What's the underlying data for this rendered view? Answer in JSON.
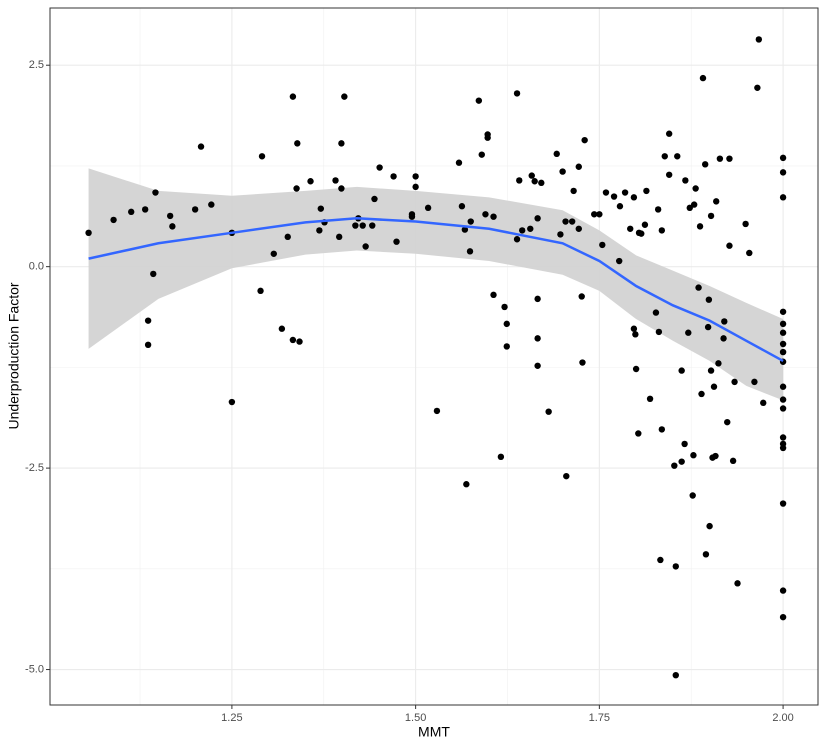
{
  "chart_data": {
    "type": "scatter",
    "x_label": "MMT",
    "y_label": "Underproduction Factor",
    "xlim": [
      1.0025,
      2.0475
    ],
    "ylim": [
      -5.44,
      3.21
    ],
    "xticks": [
      1.25,
      {
        "value": 1.5,
        "label": "1.50"
      },
      1.75,
      {
        "value": 2,
        "label": "2.00"
      }
    ],
    "yticks": [
      {
        "value": -5,
        "label": "-5.0"
      },
      -2.5,
      {
        "value": 0,
        "label": "0.0"
      },
      2.5
    ],
    "grid": true,
    "minor_grid": true,
    "color": "#000000",
    "x": [
      1.055,
      1.089,
      1.113,
      1.132,
      1.146,
      1.136,
      1.136,
      1.143,
      1.166,
      1.169,
      1.2,
      1.208,
      1.222,
      1.25,
      1.25,
      1.291,
      1.289,
      1.307,
      1.318,
      1.326,
      1.333,
      1.333,
      1.339,
      1.338,
      1.342,
      1.357,
      1.369,
      1.371,
      1.376,
      1.391,
      1.396,
      1.399,
      1.399,
      1.403,
      1.418,
      1.422,
      1.428,
      1.432,
      1.444,
      1.441,
      1.451,
      1.47,
      1.474,
      1.495,
      1.495,
      1.5,
      1.5,
      1.517,
      1.529,
      1.559,
      1.563,
      1.567,
      1.569,
      1.574,
      1.575,
      1.586,
      1.59,
      1.595,
      1.598,
      1.598,
      1.606,
      1.606,
      1.616,
      1.621,
      1.624,
      1.624,
      1.638,
      1.638,
      1.641,
      1.645,
      1.656,
      1.658,
      1.662,
      1.666,
      1.666,
      1.666,
      1.666,
      1.671,
      1.681,
      1.692,
      1.697,
      1.7,
      1.704,
      1.705,
      1.713,
      1.715,
      1.722,
      1.722,
      1.726,
      1.727,
      1.73,
      1.743,
      1.75,
      1.754,
      1.759,
      1.77,
      1.777,
      1.778,
      1.785,
      1.792,
      1.797,
      1.797,
      1.799,
      1.8,
      1.804,
      1.803,
      1.807,
      1.812,
      1.814,
      1.819,
      1.827,
      1.831,
      1.83,
      1.833,
      1.835,
      1.835,
      1.839,
      1.845,
      1.845,
      1.852,
      1.854,
      1.854,
      1.856,
      1.862,
      1.862,
      1.866,
      1.867,
      1.871,
      1.873,
      1.877,
      1.878,
      1.879,
      1.881,
      1.885,
      1.887,
      1.889,
      1.891,
      1.894,
      1.895,
      1.898,
      1.899,
      1.902,
      1.9,
      1.902,
      1.904,
      1.906,
      1.908,
      1.909,
      1.912,
      1.914,
      1.919,
      1.92,
      1.924,
      1.927,
      1.927,
      1.932,
      1.934,
      1.938,
      1.949,
      1.954,
      1.961,
      1.965,
      1.967,
      1.973,
      2,
      2,
      2,
      2,
      2,
      2,
      2,
      2,
      2,
      2,
      2,
      2,
      2,
      2,
      2,
      2,
      2,
      2
    ],
    "values": [
      0.42,
      0.58,
      0.68,
      0.71,
      0.92,
      -0.67,
      -0.97,
      -0.09,
      0.63,
      0.5,
      0.71,
      1.49,
      0.77,
      0.42,
      -1.68,
      1.37,
      -0.3,
      0.16,
      -0.77,
      0.37,
      2.11,
      -0.91,
      1.53,
      0.97,
      -0.93,
      1.06,
      0.45,
      0.72,
      0.55,
      1.07,
      0.37,
      1.53,
      0.97,
      2.11,
      0.51,
      0.6,
      0.51,
      0.25,
      0.84,
      0.51,
      1.23,
      1.12,
      0.31,
      0.65,
      0.62,
      1.12,
      0.99,
      0.73,
      -1.79,
      1.29,
      0.75,
      0.46,
      -2.7,
      0.19,
      0.56,
      2.06,
      1.39,
      0.65,
      1.64,
      1.6,
      0.62,
      -0.35,
      -2.36,
      -0.5,
      -0.71,
      -0.99,
      2.15,
      0.34,
      1.07,
      0.45,
      0.47,
      1.13,
      1.06,
      0.6,
      -0.4,
      -0.89,
      -1.23,
      1.04,
      -1.8,
      1.4,
      0.4,
      1.18,
      0.56,
      -2.6,
      0.56,
      0.94,
      1.24,
      0.47,
      -0.37,
      -1.19,
      1.57,
      0.65,
      0.65,
      0.27,
      0.92,
      0.87,
      0.07,
      0.75,
      0.92,
      0.47,
      0.86,
      -0.77,
      -0.84,
      -1.27,
      0.42,
      -2.07,
      0.41,
      0.52,
      0.94,
      -1.64,
      -0.57,
      -0.81,
      0.71,
      -3.64,
      -2.02,
      0.45,
      1.37,
      1.65,
      1.14,
      -2.47,
      -3.72,
      -5.07,
      1.37,
      -1.29,
      -2.42,
      -2.2,
      1.07,
      -0.82,
      0.73,
      -2.84,
      -2.34,
      0.77,
      0.97,
      -0.26,
      0.5,
      -1.58,
      2.34,
      1.27,
      -3.57,
      -0.75,
      -0.41,
      0.63,
      -3.22,
      -1.29,
      -2.37,
      -1.49,
      -2.35,
      0.81,
      -1.2,
      1.34,
      -0.89,
      -0.68,
      -1.93,
      1.34,
      0.26,
      -2.41,
      -1.43,
      -3.93,
      0.53,
      0.17,
      -1.43,
      2.22,
      2.82,
      -1.69,
      1.35,
      1.17,
      0.86,
      -0.56,
      -0.71,
      -0.82,
      -0.96,
      -1.06,
      -1.18,
      -1.49,
      -1.65,
      -1.76,
      -2.12,
      -2.2,
      -2.25,
      -2.94,
      -4.02,
      -4.35
    ],
    "smooth": {
      "color": "#3366ff",
      "band_color": "#d3d3d3",
      "x": [
        1.055,
        1.15,
        1.25,
        1.35,
        1.42,
        1.5,
        1.6,
        1.7,
        1.75,
        1.8,
        1.85,
        1.9,
        1.95,
        2
      ],
      "values": [
        0.1,
        0.29,
        0.42,
        0.55,
        0.6,
        0.56,
        0.47,
        0.29,
        0.07,
        -0.24,
        -0.48,
        -0.67,
        -0.92,
        -1.17
      ],
      "upper": [
        1.22,
        0.94,
        0.88,
        0.94,
        0.99,
        0.94,
        0.86,
        0.7,
        0.45,
        0.14,
        -0.05,
        -0.24,
        -0.45,
        -0.65
      ],
      "lower": [
        -1.02,
        -0.4,
        -0.02,
        0.15,
        0.2,
        0.16,
        0.07,
        -0.1,
        -0.3,
        -0.65,
        -0.92,
        -1.17,
        -1.48,
        -1.66
      ]
    }
  }
}
